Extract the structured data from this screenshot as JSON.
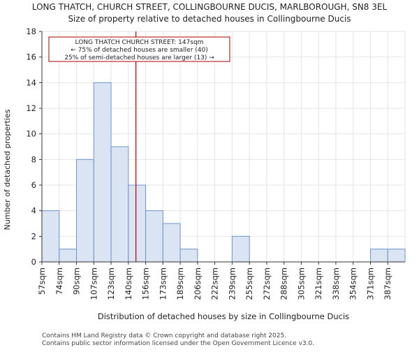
{
  "chart_data": {
    "type": "bar",
    "title": "LONG THATCH, CHURCH STREET, COLLINGBOURNE DUCIS, MARLBOROUGH, SN8 3EL",
    "subtitle": "Size of property relative to detached houses in Collingbourne Ducis",
    "xlabel": "Distribution of detached houses by size in Collingbourne Ducis",
    "ylabel": "Number of detached properties",
    "categories": [
      "57sqm",
      "74sqm",
      "90sqm",
      "107sqm",
      "123sqm",
      "140sqm",
      "156sqm",
      "173sqm",
      "189sqm",
      "206sqm",
      "222sqm",
      "239sqm",
      "255sqm",
      "272sqm",
      "288sqm",
      "305sqm",
      "321sqm",
      "338sqm",
      "354sqm",
      "371sqm",
      "387sqm"
    ],
    "values": [
      4,
      1,
      8,
      14,
      9,
      6,
      4,
      3,
      1,
      0,
      0,
      2,
      0,
      0,
      0,
      0,
      0,
      0,
      0,
      1,
      1
    ],
    "ylim": [
      0,
      18
    ],
    "yticks": [
      0,
      2,
      4,
      6,
      8,
      10,
      12,
      14,
      16,
      18
    ],
    "bar_color": "#dae4f3",
    "bar_edge_color": "#6f93cc",
    "marker": {
      "value_label": "147sqm",
      "color": "#aa0000"
    },
    "annotation": {
      "line1": "LONG THATCH CHURCH STREET: 147sqm",
      "line2": "← 75% of detached houses are smaller (40)",
      "line3": "25% of semi-detached houses are larger (13) →"
    }
  },
  "footer": {
    "line1": "Contains HM Land Registry data © Crown copyright and database right 2025.",
    "line2": "Contains public sector information licensed under the Open Government Licence v3.0."
  }
}
